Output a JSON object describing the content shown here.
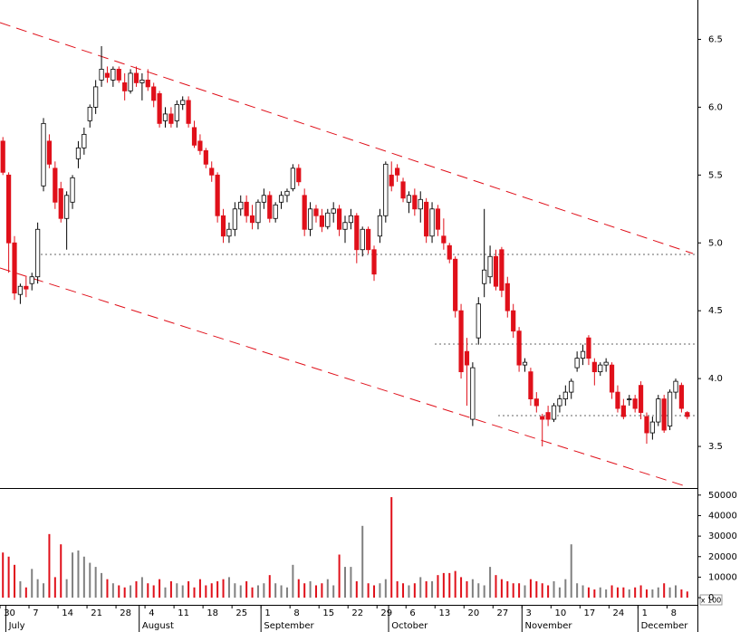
{
  "chart_data": {
    "type": "candlestick",
    "categories": [
      "30",
      null,
      null,
      null,
      null,
      "7",
      null,
      null,
      null,
      null,
      "14",
      null,
      null,
      null,
      null,
      "21",
      null,
      null,
      null,
      null,
      "28",
      null,
      null,
      null,
      null,
      "4",
      null,
      null,
      null,
      null,
      "11",
      null,
      null,
      null,
      null,
      "18",
      null,
      null,
      null,
      null,
      "25",
      null,
      null,
      null,
      null,
      "1",
      null,
      null,
      null,
      null,
      "8",
      null,
      null,
      null,
      null,
      "15",
      null,
      null,
      null,
      null,
      "22",
      null,
      null,
      null,
      null,
      "29",
      null,
      null,
      null,
      null,
      "6",
      null,
      null,
      null,
      null,
      "13",
      null,
      null,
      null,
      null,
      "20",
      null,
      null,
      null,
      null,
      "27",
      null,
      null,
      null,
      null,
      "3",
      null,
      null,
      null,
      null,
      "10",
      null,
      null,
      null,
      null,
      "17",
      null,
      null,
      null,
      null,
      "24",
      null,
      null,
      null,
      null,
      "1",
      null,
      null,
      null,
      null,
      "8",
      null,
      null,
      null
    ],
    "months": [
      null,
      "July",
      null,
      null,
      null,
      null,
      null,
      null,
      null,
      null,
      null,
      null,
      null,
      null,
      null,
      null,
      null,
      null,
      null,
      null,
      null,
      null,
      null,
      null,
      "August",
      null,
      null,
      null,
      null,
      null,
      null,
      null,
      null,
      null,
      null,
      null,
      null,
      null,
      null,
      null,
      null,
      null,
      null,
      null,
      null,
      "September",
      null,
      null,
      null,
      null,
      null,
      null,
      null,
      null,
      null,
      null,
      null,
      null,
      null,
      null,
      null,
      null,
      null,
      null,
      null,
      null,
      null,
      "October",
      null,
      null,
      null,
      null,
      null,
      null,
      null,
      null,
      null,
      null,
      null,
      null,
      null,
      null,
      null,
      null,
      null,
      null,
      null,
      null,
      null,
      null,
      "November",
      null,
      null,
      null,
      null,
      null,
      null,
      null,
      null,
      null,
      null,
      null,
      null,
      null,
      null,
      null,
      null,
      null,
      null,
      null,
      "December",
      null,
      null,
      null,
      null,
      null,
      null,
      null,
      null
    ],
    "open": [
      5.75,
      5.5,
      5.0,
      4.62,
      4.68,
      4.7,
      4.75,
      5.42,
      5.75,
      5.55,
      5.4,
      5.18,
      5.3,
      5.62,
      5.7,
      5.9,
      6.0,
      6.2,
      6.25,
      6.2,
      6.28,
      6.18,
      6.12,
      6.25,
      6.18,
      6.2,
      6.15,
      6.1,
      5.9,
      5.95,
      5.9,
      6.02,
      6.05,
      5.85,
      5.75,
      5.68,
      5.55,
      5.5,
      5.2,
      5.05,
      5.1,
      5.25,
      5.3,
      5.2,
      5.15,
      5.3,
      5.35,
      5.18,
      5.3,
      5.35,
      5.4,
      5.55,
      5.35,
      5.1,
      5.25,
      5.2,
      5.12,
      5.22,
      5.25,
      5.1,
      5.15,
      5.2,
      4.95,
      5.1,
      4.95,
      5.05,
      5.2,
      5.5,
      5.55,
      5.45,
      5.3,
      5.35,
      5.25,
      5.3,
      5.05,
      5.25,
      5.05,
      4.98,
      4.88,
      4.5,
      4.2,
      3.7,
      4.3,
      4.7,
      4.75,
      4.9,
      4.95,
      4.7,
      4.5,
      4.35,
      4.1,
      4.05,
      3.85,
      3.72,
      3.75,
      3.7,
      3.8,
      3.85,
      3.9,
      4.08,
      4.15,
      4.3,
      4.12,
      4.05,
      4.1,
      4.1,
      3.9,
      3.8,
      3.85,
      3.85,
      3.95,
      3.72,
      3.6,
      3.68,
      3.85,
      3.65,
      3.9,
      3.95,
      3.75
    ],
    "high": [
      5.78,
      5.52,
      5.05,
      4.7,
      4.75,
      4.78,
      5.15,
      5.92,
      5.8,
      5.6,
      5.45,
      5.38,
      5.5,
      5.75,
      5.85,
      6.02,
      6.2,
      6.45,
      6.3,
      6.3,
      6.3,
      6.25,
      6.28,
      6.3,
      6.25,
      6.28,
      6.18,
      6.12,
      6.0,
      6.0,
      6.05,
      6.08,
      6.08,
      5.9,
      5.8,
      5.7,
      5.6,
      5.52,
      5.25,
      5.15,
      5.3,
      5.35,
      5.35,
      5.28,
      5.32,
      5.4,
      5.38,
      5.3,
      5.38,
      5.4,
      5.58,
      5.58,
      5.4,
      5.3,
      5.28,
      5.25,
      5.25,
      5.3,
      5.28,
      5.2,
      5.25,
      5.22,
      5.12,
      5.12,
      4.98,
      5.25,
      5.6,
      5.6,
      5.58,
      5.48,
      5.38,
      5.4,
      5.38,
      5.33,
      5.3,
      5.28,
      5.18,
      5.0,
      4.9,
      4.55,
      4.3,
      4.12,
      4.6,
      5.25,
      4.98,
      4.95,
      4.97,
      4.75,
      4.55,
      4.38,
      4.15,
      4.08,
      3.9,
      3.74,
      3.8,
      3.82,
      3.88,
      3.95,
      4.0,
      4.2,
      4.25,
      4.32,
      4.15,
      4.12,
      4.15,
      4.12,
      3.95,
      3.85,
      3.88,
      3.88,
      3.98,
      3.75,
      3.72,
      3.88,
      3.88,
      3.92,
      4.0,
      3.97,
      3.76
    ],
    "low": [
      5.5,
      4.78,
      4.58,
      4.55,
      4.6,
      4.65,
      4.7,
      5.38,
      5.55,
      5.25,
      5.15,
      4.95,
      5.25,
      5.55,
      5.65,
      5.85,
      5.95,
      6.15,
      6.18,
      6.15,
      6.18,
      6.05,
      6.1,
      6.15,
      6.05,
      6.12,
      6.0,
      5.85,
      5.85,
      5.85,
      5.85,
      5.98,
      5.85,
      5.7,
      5.65,
      5.55,
      5.45,
      5.15,
      5.0,
      5.0,
      5.05,
      5.2,
      5.15,
      5.1,
      5.1,
      5.25,
      5.15,
      5.15,
      5.25,
      5.3,
      5.38,
      5.42,
      5.05,
      5.05,
      5.15,
      5.08,
      5.1,
      5.15,
      5.05,
      5.0,
      5.1,
      4.85,
      4.9,
      4.92,
      4.72,
      5.0,
      5.15,
      5.38,
      5.45,
      5.3,
      5.22,
      5.2,
      5.15,
      5.0,
      5.0,
      5.05,
      4.95,
      4.85,
      4.45,
      4.0,
      3.8,
      3.65,
      4.25,
      4.6,
      4.7,
      4.65,
      4.6,
      4.45,
      4.3,
      4.05,
      4.05,
      3.8,
      3.75,
      3.5,
      3.65,
      3.68,
      3.75,
      3.8,
      3.85,
      4.05,
      4.1,
      4.1,
      3.95,
      4.02,
      4.05,
      3.85,
      3.75,
      3.7,
      3.8,
      3.75,
      3.7,
      3.52,
      3.55,
      3.65,
      3.6,
      3.62,
      3.85,
      3.75,
      3.7
    ],
    "close": [
      5.52,
      5.0,
      4.63,
      4.68,
      4.66,
      4.75,
      5.1,
      5.88,
      5.58,
      5.3,
      5.18,
      5.35,
      5.48,
      5.7,
      5.8,
      6.0,
      6.15,
      6.28,
      6.22,
      6.28,
      6.2,
      6.12,
      6.25,
      6.18,
      6.2,
      6.15,
      6.05,
      5.88,
      5.95,
      5.88,
      6.02,
      6.05,
      5.88,
      5.72,
      5.68,
      5.58,
      5.5,
      5.2,
      5.05,
      5.1,
      5.25,
      5.3,
      5.2,
      5.15,
      5.3,
      5.35,
      5.18,
      5.28,
      5.35,
      5.38,
      5.55,
      5.45,
      5.1,
      5.25,
      5.2,
      5.12,
      5.22,
      5.25,
      5.1,
      5.15,
      5.2,
      4.95,
      5.1,
      4.95,
      4.77,
      5.2,
      5.58,
      5.42,
      5.5,
      5.33,
      5.35,
      5.25,
      5.32,
      5.05,
      5.25,
      5.1,
      5.0,
      4.88,
      4.5,
      4.05,
      4.1,
      4.08,
      4.55,
      4.8,
      4.9,
      4.68,
      4.65,
      4.5,
      4.35,
      4.1,
      4.12,
      3.85,
      3.8,
      3.7,
      3.7,
      3.8,
      3.85,
      3.9,
      3.98,
      4.15,
      4.2,
      4.15,
      4.05,
      4.1,
      4.12,
      3.9,
      3.78,
      3.72,
      3.85,
      3.78,
      3.75,
      3.6,
      3.68,
      3.85,
      3.62,
      3.9,
      3.98,
      3.78,
      3.72
    ],
    "volume": [
      22000,
      20000,
      16000,
      8000,
      5000,
      14000,
      9000,
      7000,
      31000,
      10000,
      26000,
      9000,
      22000,
      23000,
      20000,
      17000,
      15000,
      12000,
      9000,
      7000,
      6000,
      5000,
      6000,
      8000,
      10000,
      7000,
      6000,
      9000,
      5000,
      8000,
      7000,
      6000,
      8000,
      5000,
      9000,
      6000,
      7000,
      8000,
      9000,
      10000,
      7000,
      6000,
      8000,
      5000,
      6000,
      7000,
      11000,
      7000,
      6000,
      5000,
      16000,
      9000,
      7000,
      8000,
      6000,
      7000,
      9000,
      6000,
      21000,
      15000,
      15000,
      8000,
      35000,
      7000,
      6000,
      7000,
      9000,
      49000,
      8000,
      7000,
      6000,
      7000,
      10000,
      8000,
      8000,
      11000,
      12000,
      12000,
      13000,
      10000,
      8000,
      9000,
      7000,
      6000,
      15000,
      11000,
      9000,
      8000,
      7000,
      7000,
      6000,
      9000,
      8000,
      7000,
      6000,
      8000,
      5000,
      9000,
      26000,
      7000,
      6000,
      5000,
      4000,
      5000,
      4000,
      6000,
      5000,
      5000,
      4000,
      5000,
      6000,
      4000,
      4000,
      5000,
      7000,
      5000,
      6000,
      4000,
      3000
    ],
    "ylim": [
      3.2,
      6.79
    ],
    "yticks": [
      3.5,
      {
        "value": 4,
        "label": "4.0"
      },
      4.5,
      {
        "value": 5,
        "label": "5.0"
      },
      5.5,
      {
        "value": 6,
        "label": "6.0"
      },
      6.5
    ],
    "volume_ylim": [
      -3500,
      53000
    ],
    "volume_yticks": [
      0,
      10000,
      20000,
      30000,
      40000,
      50000
    ],
    "volume_unit_label": "x 100",
    "up_color": "#ffffff",
    "down_color": "#e0101a",
    "up_volume_color": "#808080",
    "down_volume_color": "#e0101a"
  }
}
